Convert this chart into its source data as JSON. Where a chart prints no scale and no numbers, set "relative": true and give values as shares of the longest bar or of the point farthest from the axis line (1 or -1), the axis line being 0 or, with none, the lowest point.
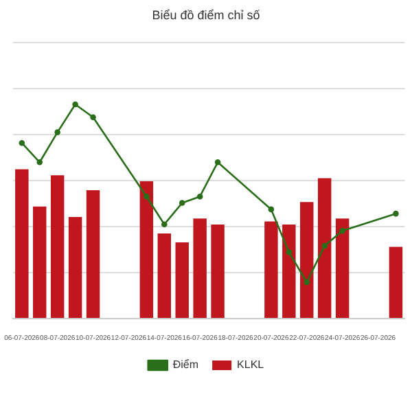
{
  "chart_data": {
    "type": "bar",
    "title": "Biểu đồ điểm chỉ số",
    "relative": true,
    "grid": "y",
    "legend": "bottom",
    "marker": "circle",
    "line_style": "solid",
    "categories": [
      "06-07-2026",
      null,
      "08-07-2026",
      null,
      "10-07-2026",
      null,
      "12-07-2026",
      null,
      "14-07-2026",
      null,
      "16-07-2026",
      null,
      "18-07-2026",
      null,
      "20-07-2026",
      null,
      "22-07-2026",
      null,
      "24-07-2026",
      null,
      "26-07-2026",
      null
    ],
    "series": [
      {
        "name": "KLKL",
        "color": "#c0161e",
        "values": [
          1,
          0.75,
          0.96,
          0.68,
          0.86,
          null,
          null,
          0.92,
          0.57,
          0.51,
          0.67,
          0.63,
          null,
          null,
          0.65,
          0.63,
          0.78,
          0.94,
          0.67,
          null,
          null,
          0.48
        ]
      },
      {
        "name": "Điểm",
        "type": "line",
        "axis": "y2",
        "color": "#2a6e1a",
        "values": [
          0.82,
          0.73,
          0.87,
          1,
          0.94,
          null,
          null,
          0.57,
          0.44,
          0.54,
          0.57,
          0.73,
          null,
          null,
          0.51,
          0.31,
          0.17,
          0.34,
          0.41,
          null,
          null,
          0.49
        ]
      }
    ]
  }
}
